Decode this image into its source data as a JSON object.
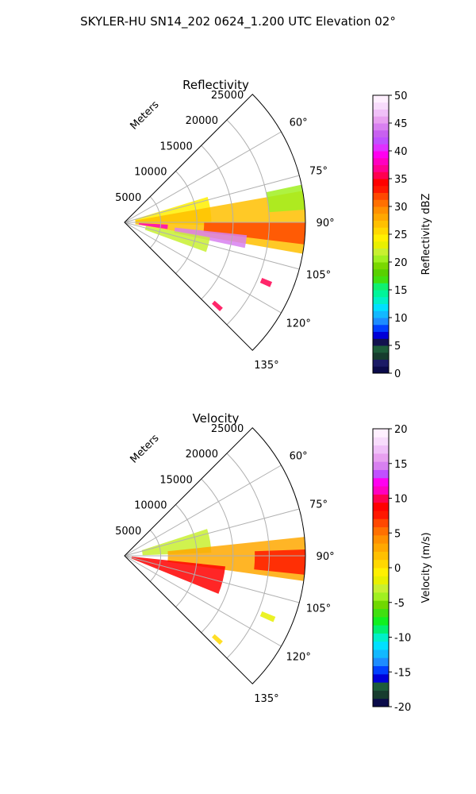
{
  "figure": {
    "title": "SKYLER-HU  SN14_202  0624_1.200 UTC Elevation 02°"
  },
  "chart_data": [
    {
      "type": "heatmap",
      "projection": "polar-sector",
      "title": "Reflectivity",
      "range_label": "Meters",
      "range_ticks": [
        5000,
        10000,
        15000,
        20000,
        25000
      ],
      "range_max": 25000,
      "azimuth_range_deg": [
        45,
        135
      ],
      "azimuth_ticks": [
        60,
        75,
        90,
        105,
        120,
        135
      ],
      "azimuth_tick_labels": [
        "60°",
        "75°",
        "90°",
        "105°",
        "120°",
        "135°"
      ],
      "grid": true,
      "colorbar": {
        "label": "Reflectivity dBZ",
        "vmin": 0,
        "vmax": 50,
        "ticks": [
          0,
          5,
          10,
          15,
          20,
          25,
          30,
          35,
          40,
          45,
          50
        ],
        "colors": [
          "#0b0b4a",
          "#1b1b66",
          "#173c2e",
          "#1d5c3a",
          "#12124e",
          "#0000d8",
          "#0040ff",
          "#1d8cff",
          "#12b8ff",
          "#00e0ff",
          "#00f0c8",
          "#00f59a",
          "#10f070",
          "#40e010",
          "#58d000",
          "#7ad800",
          "#a0f020",
          "#c8f030",
          "#e8f000",
          "#fff000",
          "#ffd800",
          "#ffc000",
          "#ffa800",
          "#ff9000",
          "#ff7000",
          "#ff4800",
          "#ff1800",
          "#ff0000",
          "#ff0050",
          "#ff0090",
          "#ff00c0",
          "#ff00f0",
          "#e030ff",
          "#c050ff",
          "#c860f0",
          "#d880f0",
          "#e8a0f0",
          "#f0c0f8",
          "#f8dcfc",
          "#fff0ff"
        ]
      },
      "echo_regions": [
        {
          "az_deg": [
            73,
            92
          ],
          "range_m": [
            1500,
            12000
          ],
          "value": 24
        },
        {
          "az_deg": [
            80,
            100
          ],
          "range_m": [
            1500,
            25000
          ],
          "value": 27
        },
        {
          "az_deg": [
            90,
            97
          ],
          "range_m": [
            11000,
            25000
          ],
          "value": 32
        },
        {
          "az_deg": [
            96,
            102
          ],
          "range_m": [
            7000,
            17000
          ],
          "value": 44
        },
        {
          "az_deg": [
            93,
            99
          ],
          "range_m": [
            2000,
            6000
          ],
          "value": 38
        },
        {
          "az_deg": [
            100,
            110
          ],
          "range_m": [
            3000,
            12000
          ],
          "value": 22
        },
        {
          "az_deg": [
            78,
            86
          ],
          "range_m": [
            20000,
            25000
          ],
          "value": 20
        },
        {
          "az_deg": [
            112,
            114
          ],
          "range_m": [
            20500,
            22000
          ],
          "value": 36
        },
        {
          "az_deg": [
            131,
            133
          ],
          "range_m": [
            16500,
            18000
          ],
          "value": 36
        }
      ]
    },
    {
      "type": "heatmap",
      "projection": "polar-sector",
      "title": "Velocity",
      "range_label": "Meters",
      "range_ticks": [
        5000,
        10000,
        15000,
        20000,
        25000
      ],
      "range_max": 25000,
      "azimuth_range_deg": [
        45,
        135
      ],
      "azimuth_ticks": [
        60,
        75,
        90,
        105,
        120,
        135
      ],
      "azimuth_tick_labels": [
        "60°",
        "75°",
        "90°",
        "105°",
        "120°",
        "135°"
      ],
      "grid": true,
      "colorbar": {
        "label": "Velocity (m/s)",
        "vmin": -20,
        "vmax": 20,
        "ticks": [
          -20,
          -15,
          -10,
          -5,
          0,
          5,
          10,
          15,
          20
        ],
        "colors": [
          "#0b0b4a",
          "#173c2e",
          "#1d5c3a",
          "#0000d8",
          "#0040ff",
          "#1d8cff",
          "#12b8ff",
          "#00e0ff",
          "#00f0c8",
          "#00f070",
          "#10f020",
          "#40e010",
          "#70d800",
          "#a0f020",
          "#c8f030",
          "#e8f000",
          "#fff000",
          "#ffd800",
          "#ffc000",
          "#ffa800",
          "#ff9000",
          "#ff7000",
          "#ff4800",
          "#ff1800",
          "#ff0000",
          "#ff0050",
          "#ff00c0",
          "#ff00f0",
          "#c050ff",
          "#d880f0",
          "#e8a0f0",
          "#f0c0f8",
          "#f8dcfc",
          "#fff0ff"
        ]
      },
      "echo_regions": [
        {
          "az_deg": [
            72,
            88
          ],
          "range_m": [
            2500,
            12000
          ],
          "value": -3
        },
        {
          "az_deg": [
            84,
            98
          ],
          "range_m": [
            6000,
            25000
          ],
          "value": 3
        },
        {
          "az_deg": [
            96,
            112
          ],
          "range_m": [
            1000,
            14000
          ],
          "value": 9
        },
        {
          "az_deg": [
            88,
            96
          ],
          "range_m": [
            18000,
            25000
          ],
          "value": 8
        },
        {
          "az_deg": [
            112,
            114
          ],
          "range_m": [
            20500,
            22500
          ],
          "value": -2
        },
        {
          "az_deg": [
            131,
            133
          ],
          "range_m": [
            16500,
            18000
          ],
          "value": 1
        }
      ]
    }
  ]
}
